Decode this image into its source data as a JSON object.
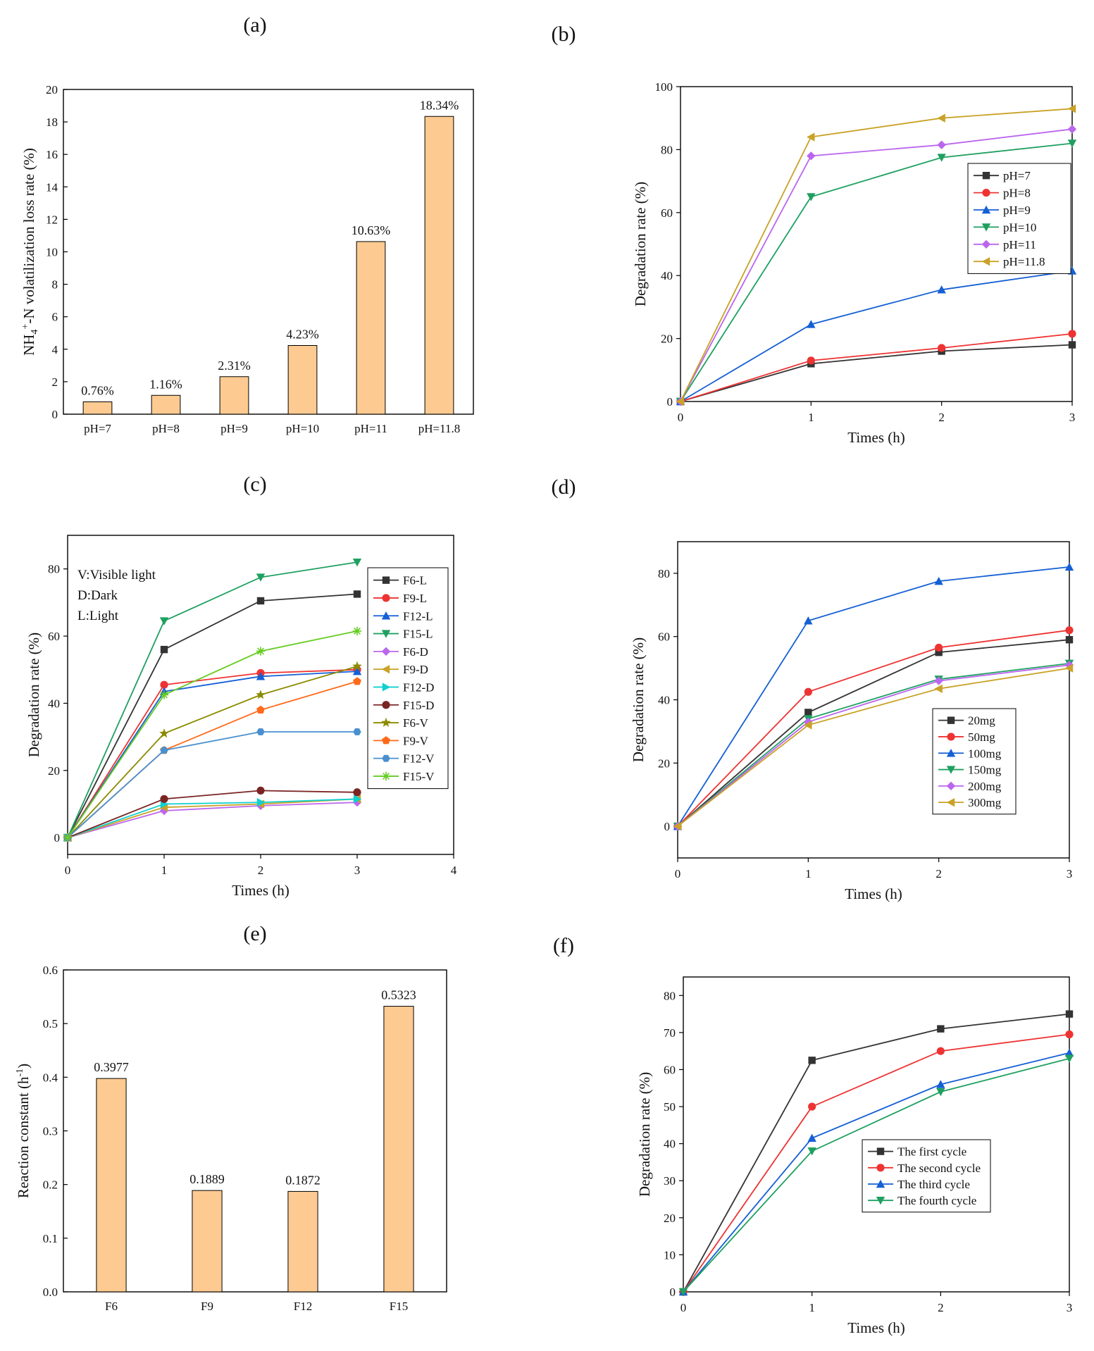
{
  "figure": {
    "panels": [
      {
        "id": "a",
        "label": "(a)"
      },
      {
        "id": "b",
        "label": "(b)"
      },
      {
        "id": "c",
        "label": "(c)"
      },
      {
        "id": "d",
        "label": "(d)"
      },
      {
        "id": "e",
        "label": "(e)"
      },
      {
        "id": "f",
        "label": "(f)"
      }
    ]
  },
  "colors": {
    "bar_fill": "#FDCB91",
    "black": "#333333",
    "red": "#EE3333",
    "blue": "#1560D4",
    "green": "#1FA060",
    "purple": "#BB66EE",
    "olive": "#C9A227",
    "dark_olive": "#8B8B00",
    "orange": "#FF6A1A",
    "cyan": "#10D0D0",
    "maroon": "#7B2424",
    "light_blue": "#4A90D0",
    "lime": "#66CC22"
  },
  "chart_data": [
    {
      "panel": "a",
      "type": "bar",
      "categories": [
        "pH=7",
        "pH=8",
        "pH=9",
        "pH=10",
        "pH=11",
        "pH=11.8"
      ],
      "values": [
        0.76,
        1.16,
        2.31,
        4.23,
        10.63,
        18.34
      ],
      "value_labels": [
        "0.76%",
        "1.16%",
        "2.31%",
        "4.23%",
        "10.63%",
        "18.34%"
      ],
      "ylabel": "NH4+-N volatilization loss rate (%)",
      "ylabel_main": "NH",
      "ylabel_sub": "4",
      "ylabel_sup": "+",
      "ylabel_rest": "-N volatilization loss rate (%)",
      "xlabel": "",
      "ylim": [
        0,
        20
      ],
      "yticks": [
        0,
        2,
        4,
        6,
        8,
        10,
        12,
        14,
        16,
        18,
        20
      ]
    },
    {
      "panel": "b",
      "type": "line",
      "x": [
        0,
        1,
        2,
        3
      ],
      "xlabel": "Times (h)",
      "ylabel": "Degradation rate (%)",
      "xlim": [
        0,
        3
      ],
      "ylim": [
        0,
        100
      ],
      "xticks": [
        0,
        1,
        2,
        3
      ],
      "yticks": [
        0,
        20,
        40,
        60,
        80,
        100
      ],
      "legend_position": "middle-right",
      "series": [
        {
          "name": "pH=7",
          "values": [
            0,
            12,
            16,
            18
          ],
          "color": "#333333",
          "marker": "square"
        },
        {
          "name": "pH=8",
          "values": [
            0,
            13,
            17,
            21.5
          ],
          "color": "#EE3333",
          "marker": "circle"
        },
        {
          "name": "pH=9",
          "values": [
            0,
            24.5,
            35.5,
            41.5
          ],
          "color": "#1560D4",
          "marker": "triangle-up"
        },
        {
          "name": "pH=10",
          "values": [
            0,
            65,
            77.5,
            82
          ],
          "color": "#1FA060",
          "marker": "triangle-down"
        },
        {
          "name": "pH=11",
          "values": [
            0,
            78,
            81.5,
            86.5
          ],
          "color": "#BB66EE",
          "marker": "diamond"
        },
        {
          "name": "pH=11.8",
          "values": [
            0,
            84,
            90,
            93
          ],
          "color": "#C9A227",
          "marker": "triangle-left"
        }
      ]
    },
    {
      "panel": "c",
      "type": "line",
      "x": [
        0,
        1,
        2,
        3
      ],
      "xlabel": "Times (h)",
      "ylabel": "Degradation rate (%)",
      "xlim": [
        0,
        4
      ],
      "ylim": [
        -5,
        90
      ],
      "xticks": [
        0,
        1,
        2,
        3,
        4
      ],
      "yticks": [
        0,
        20,
        40,
        60,
        80
      ],
      "annotations": [
        "V:Visible light",
        "D:Dark",
        "L:Light"
      ],
      "legend_position": "right",
      "series": [
        {
          "name": "F6-L",
          "values": [
            0,
            56,
            70.5,
            72.5
          ],
          "color": "#333333",
          "marker": "square"
        },
        {
          "name": "F9-L",
          "values": [
            0,
            45.5,
            49,
            50
          ],
          "color": "#EE3333",
          "marker": "circle"
        },
        {
          "name": "F12-L",
          "values": [
            0,
            43.5,
            48,
            49.5
          ],
          "color": "#1560D4",
          "marker": "triangle-up"
        },
        {
          "name": "F15-L",
          "values": [
            0,
            64.5,
            77.5,
            82
          ],
          "color": "#1FA060",
          "marker": "triangle-down"
        },
        {
          "name": "F6-D",
          "values": [
            0,
            8,
            9.5,
            10.5
          ],
          "color": "#BB66EE",
          "marker": "diamond"
        },
        {
          "name": "F9-D",
          "values": [
            0,
            9,
            10,
            11.5
          ],
          "color": "#C9A227",
          "marker": "triangle-left"
        },
        {
          "name": "F12-D",
          "values": [
            0,
            10,
            10.5,
            11.5
          ],
          "color": "#10D0D0",
          "marker": "triangle-right"
        },
        {
          "name": "F15-D",
          "values": [
            0,
            11.5,
            14,
            13.5
          ],
          "color": "#7B2424",
          "marker": "circle"
        },
        {
          "name": "F6-V",
          "values": [
            0,
            31,
            42.5,
            51
          ],
          "color": "#8B8B00",
          "marker": "star"
        },
        {
          "name": "F9-V",
          "values": [
            0,
            26,
            38,
            46.5
          ],
          "color": "#FF6A1A",
          "marker": "pentagon"
        },
        {
          "name": "F12-V",
          "values": [
            0,
            26,
            31.5,
            31.5
          ],
          "color": "#4A90D0",
          "marker": "hexagon"
        },
        {
          "name": "F15-V",
          "values": [
            0,
            42.5,
            55.5,
            61.5
          ],
          "color": "#66CC22",
          "marker": "asterisk"
        }
      ]
    },
    {
      "panel": "d",
      "type": "line",
      "x": [
        0,
        1,
        2,
        3
      ],
      "xlabel": "Times (h)",
      "ylabel": "Degradation rate (%)",
      "xlim": [
        0,
        3
      ],
      "ylim": [
        -10,
        90
      ],
      "xticks": [
        0,
        1,
        2,
        3
      ],
      "yticks": [
        0,
        20,
        40,
        60,
        80
      ],
      "legend_position": "lower-right",
      "series": [
        {
          "name": "20mg",
          "values": [
            0,
            36,
            55,
            59
          ],
          "color": "#333333",
          "marker": "square"
        },
        {
          "name": "50mg",
          "values": [
            0,
            42.5,
            56.5,
            62
          ],
          "color": "#EE3333",
          "marker": "circle"
        },
        {
          "name": "100mg",
          "values": [
            0,
            65,
            77.5,
            82
          ],
          "color": "#1560D4",
          "marker": "triangle-up"
        },
        {
          "name": "150mg",
          "values": [
            0,
            34,
            46.5,
            51.5
          ],
          "color": "#1FA060",
          "marker": "triangle-down"
        },
        {
          "name": "200mg",
          "values": [
            0,
            33,
            46,
            51
          ],
          "color": "#BB66EE",
          "marker": "diamond"
        },
        {
          "name": "300mg",
          "values": [
            0,
            32,
            43.5,
            50
          ],
          "color": "#C9A227",
          "marker": "triangle-left"
        }
      ]
    },
    {
      "panel": "e",
      "type": "bar",
      "categories": [
        "F6",
        "F9",
        "F12",
        "F15"
      ],
      "values": [
        0.3977,
        0.1889,
        0.1872,
        0.5323
      ],
      "value_labels": [
        "0.3977",
        "0.1889",
        "0.1872",
        "0.5323"
      ],
      "ylabel": "Reaction constant (h-1)",
      "ylabel_main": "Reaction constant (h",
      "ylabel_sup": "-1",
      "ylabel_rest": ")",
      "xlabel": "",
      "ylim": [
        0,
        0.6
      ],
      "yticks": [
        0,
        0.1,
        0.2,
        0.3,
        0.4,
        0.5,
        0.6
      ],
      "ytick_labels": [
        "0.0",
        "0.1",
        "0.2",
        "0.3",
        "0.4",
        "0.5",
        "0.6"
      ]
    },
    {
      "panel": "f",
      "type": "line",
      "x": [
        0,
        1,
        2,
        3
      ],
      "xlabel": "Times (h)",
      "ylabel": "Degradation rate (%)",
      "xlim": [
        0,
        3
      ],
      "ylim": [
        0,
        85
      ],
      "xticks": [
        0,
        1,
        2,
        3
      ],
      "yticks": [
        0,
        10,
        20,
        30,
        40,
        50,
        60,
        70,
        80
      ],
      "legend_position": "lower-right",
      "series": [
        {
          "name": "The first cycle",
          "values": [
            0,
            62.5,
            71,
            75
          ],
          "color": "#333333",
          "marker": "square"
        },
        {
          "name": "The second cycle",
          "values": [
            0,
            50,
            65,
            69.5
          ],
          "color": "#EE3333",
          "marker": "circle"
        },
        {
          "name": "The third cycle",
          "values": [
            0,
            41.5,
            56,
            64.5
          ],
          "color": "#1560D4",
          "marker": "triangle-up"
        },
        {
          "name": "The fourth cycle",
          "values": [
            0,
            38,
            54,
            63
          ],
          "color": "#1FA060",
          "marker": "triangle-down"
        }
      ]
    }
  ]
}
